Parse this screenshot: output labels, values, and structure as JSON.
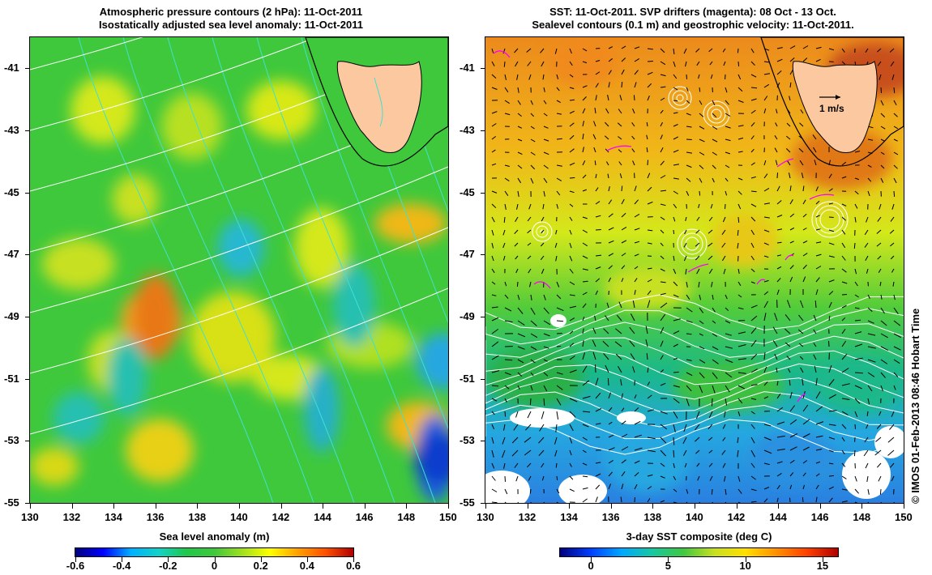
{
  "left_panel": {
    "title_line1": "Atmospheric pressure contours (2 hPa): 11-Oct-2011",
    "title_line2": "Isostatically adjusted sea level anomaly: 11-Oct-2011",
    "colorbar_label": "Sea level anomaly (m)",
    "colorbar_ticks": [
      "-0.6",
      "-0.4",
      "-0.2",
      "0",
      "0.2",
      "0.4",
      "0.6"
    ],
    "colorbar_range": [
      -0.6,
      0.6
    ]
  },
  "right_panel": {
    "title_line1": "SST: 11-Oct-2011. SVP drifters (magenta): 08 Oct - 13 Oct.",
    "title_line2": "Sealevel contours (0.1 m) and geostrophic velocity: 11-Oct-2011.",
    "colorbar_label": "3-day SST composite (deg C)",
    "colorbar_ticks": [
      "0",
      "5",
      "10",
      "15"
    ],
    "colorbar_range": [
      -2,
      16
    ],
    "velocity_scale_label": "1 m/s"
  },
  "axes": {
    "lon_ticks": [
      "130",
      "132",
      "134",
      "136",
      "138",
      "140",
      "142",
      "144",
      "146",
      "148",
      "150"
    ],
    "lat_ticks": [
      "-41",
      "-43",
      "-45",
      "-47",
      "-49",
      "-51",
      "-53",
      "-55"
    ],
    "lon_range": [
      130,
      150
    ],
    "lat_range": [
      -55,
      -40
    ]
  },
  "credit": "© IMOS 01-Feb-2013 08:46 Hobart Time",
  "colors": {
    "land": "#fcc8a0",
    "coast_line": "#000000",
    "pressure_contour": "#ffffff",
    "sla_contour": "#40e0d0",
    "drifter": "#ff00ff"
  }
}
